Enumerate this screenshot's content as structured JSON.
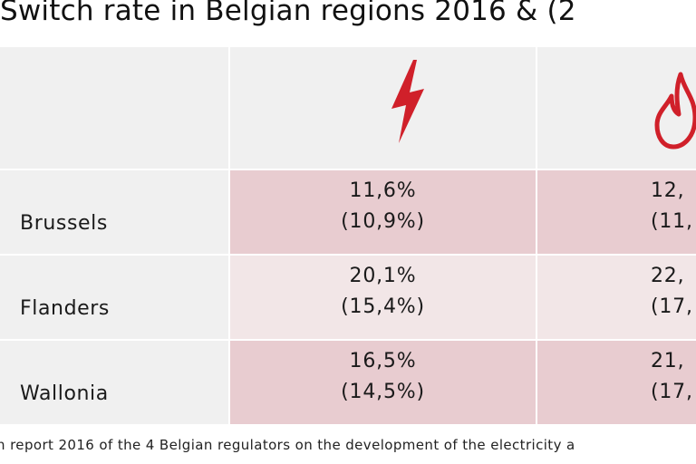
{
  "title": "Switch rate in Belgian regions 2016 & (2",
  "header": {
    "col1_icon": "lightning-bolt-icon",
    "col2_icon": "gas-flame-icon",
    "accent_color": "#d0202a"
  },
  "rows": [
    {
      "region": "Brussels",
      "electricity": "11,6%",
      "electricity_prev": "(10,9%)",
      "gas": "12,",
      "gas_prev": "(11,"
    },
    {
      "region": "Flanders",
      "electricity": "20,1%",
      "electricity_prev": "(15,4%)",
      "gas": "22,",
      "gas_prev": "(17,"
    },
    {
      "region": "Wallonia",
      "electricity": "16,5%",
      "electricity_prev": "(14,5%)",
      "gas": "21,",
      "gas_prev": "(17,"
    }
  ],
  "footer": "n report 2016 of the 4 Belgian regulators on the development of the electricity a"
}
